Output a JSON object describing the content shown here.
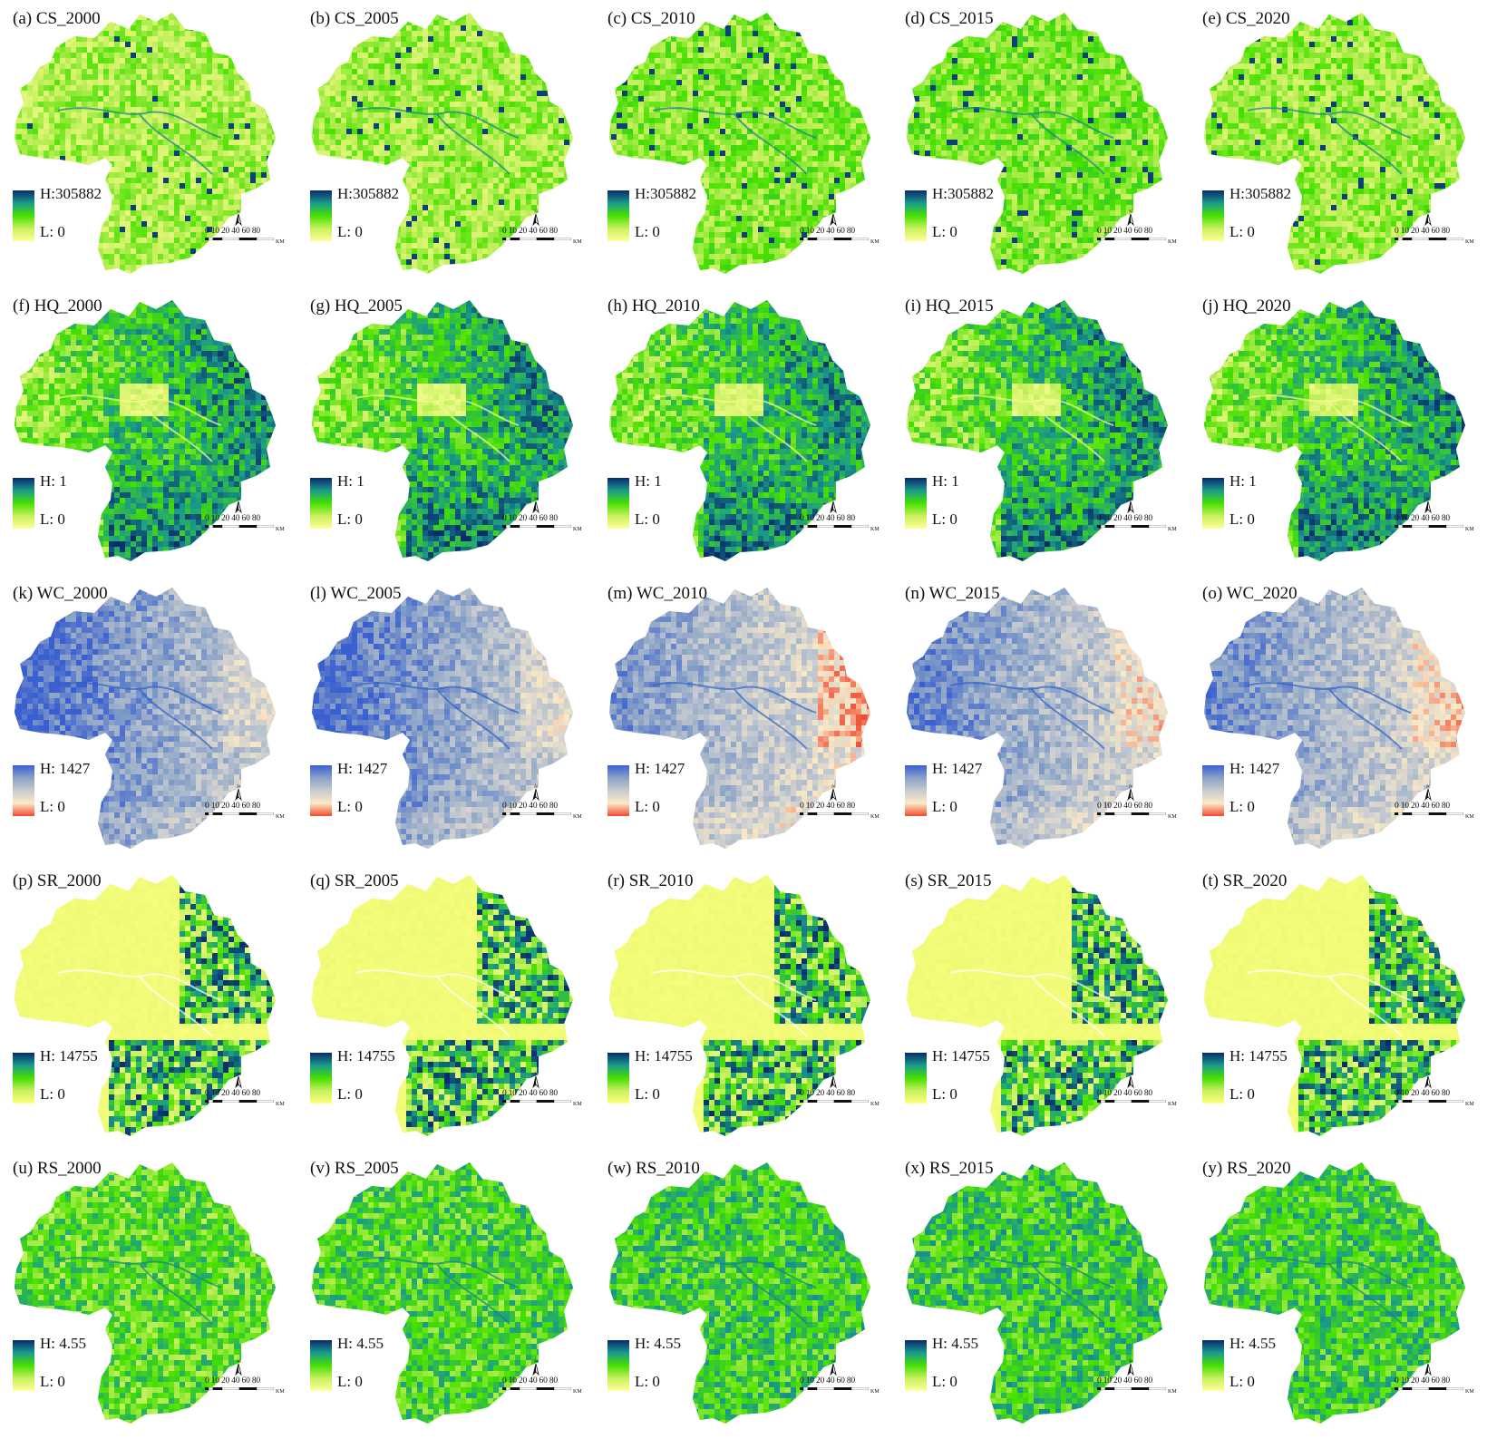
{
  "legend_units": {
    "scale_ticks": "0 10 20  40  60  80",
    "scale_unit": "KM",
    "north": "N"
  },
  "palettes": {
    "CS": [
      "#ffff99",
      "#c8f060",
      "#46e000",
      "#1a9a8a",
      "#0a2a6e"
    ],
    "HQ": [
      "#ffff99",
      "#c8f060",
      "#46e000",
      "#1a9a8a",
      "#0a2a6e"
    ],
    "WC": [
      "#f04a30",
      "#fbe9c5",
      "#c7cbd0",
      "#8aa3c7",
      "#3a5fd0"
    ],
    "SR": [
      "#ffff80",
      "#c8f060",
      "#46e000",
      "#1a9a8a",
      "#0a2a6e"
    ],
    "RS": [
      "#ffff99",
      "#c8f060",
      "#46e000",
      "#1a9a8a",
      "#0a2a6e"
    ]
  },
  "panels": [
    {
      "title": "(a) CS_2000",
      "service": "CS",
      "high": "H:305882",
      "low": "L: 0",
      "level": 0.3
    },
    {
      "title": "(b) CS_2005",
      "service": "CS",
      "high": "H:305882",
      "low": "L: 0",
      "level": 0.32
    },
    {
      "title": "(c) CS_2010",
      "service": "CS",
      "high": "H:305882",
      "low": "L: 0",
      "level": 0.38
    },
    {
      "title": "(d) CS_2015",
      "service": "CS",
      "high": "H:305882",
      "low": "L: 0",
      "level": 0.4
    },
    {
      "title": "(e) CS_2020",
      "service": "CS",
      "high": "H:305882",
      "low": "L: 0",
      "level": 0.34
    },
    {
      "title": "(f) HQ_2000",
      "service": "HQ",
      "high": "H: 1",
      "low": "L: 0",
      "level": 0.62
    },
    {
      "title": "(g) HQ_2005",
      "service": "HQ",
      "high": "H: 1",
      "low": "L: 0",
      "level": 0.62
    },
    {
      "title": "(h) HQ_2010",
      "service": "HQ",
      "high": "H: 1",
      "low": "L: 0",
      "level": 0.6
    },
    {
      "title": "(i) HQ_2015",
      "service": "HQ",
      "high": "H: 1",
      "low": "L: 0",
      "level": 0.6
    },
    {
      "title": "(j) HQ_2020",
      "service": "HQ",
      "high": "H: 1",
      "low": "L: 0",
      "level": 0.58
    },
    {
      "title": "(k) WC_2000",
      "service": "WC",
      "high": "H: 1427",
      "low": "L: 0",
      "level": 0.72
    },
    {
      "title": "(l) WC_2005",
      "service": "WC",
      "high": "H: 1427",
      "low": "L: 0",
      "level": 0.7
    },
    {
      "title": "(m) WC_2010",
      "service": "WC",
      "high": "H: 1427",
      "low": "L: 0",
      "level": 0.55
    },
    {
      "title": "(n) WC_2015",
      "service": "WC",
      "high": "H: 1427",
      "low": "L: 0",
      "level": 0.62
    },
    {
      "title": "(o) WC_2020",
      "service": "WC",
      "high": "H: 1427",
      "low": "L: 0",
      "level": 0.6
    },
    {
      "title": "(p) SR_2000",
      "service": "SR",
      "high": "H: 14755",
      "low": "L: 0",
      "level": 0.25
    },
    {
      "title": "(q) SR_2005",
      "service": "SR",
      "high": "H: 14755",
      "low": "L: 0",
      "level": 0.25
    },
    {
      "title": "(r) SR_2010",
      "service": "SR",
      "high": "H: 14755",
      "low": "L: 0",
      "level": 0.26
    },
    {
      "title": "(s) SR_2015",
      "service": "SR",
      "high": "H: 14755",
      "low": "L: 0",
      "level": 0.26
    },
    {
      "title": "(t) SR_2020",
      "service": "SR",
      "high": "H: 14755",
      "low": "L: 0",
      "level": 0.27
    },
    {
      "title": "(u) RS_2000",
      "service": "RS",
      "high": "H: 4.55",
      "low": "L: 0",
      "level": 0.48
    },
    {
      "title": "(v) RS_2005",
      "service": "RS",
      "high": "H: 4.55",
      "low": "L: 0",
      "level": 0.52
    },
    {
      "title": "(w) RS_2010",
      "service": "RS",
      "high": "H: 4.55",
      "low": "L: 0",
      "level": 0.55
    },
    {
      "title": "(x) RS_2015",
      "service": "RS",
      "high": "H: 4.55",
      "low": "L: 0",
      "level": 0.56
    },
    {
      "title": "(y) RS_2020",
      "service": "RS",
      "high": "H: 4.55",
      "low": "L: 0",
      "level": 0.55
    }
  ]
}
